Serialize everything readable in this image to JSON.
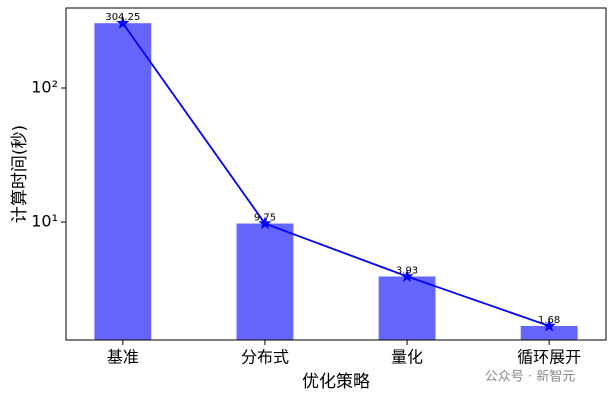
{
  "chart_data": {
    "type": "bar",
    "line_overlay": true,
    "x_label": "优化策略",
    "y_label": "计算时间(秒)",
    "categories": [
      "基准",
      "分布式",
      "量化",
      "循环展开"
    ],
    "values": [
      304.25,
      9.75,
      3.93,
      1.68
    ],
    "color": "#6666ff",
    "line_color": "#0000ff",
    "log_scale": true,
    "ylim": [
      1.32,
      395
    ],
    "yticks": [
      {
        "value": 10,
        "label": "10¹"
      },
      {
        "value": 100,
        "label": "10²"
      }
    ],
    "grid": false,
    "watermark": "公众号 · 新智元"
  }
}
